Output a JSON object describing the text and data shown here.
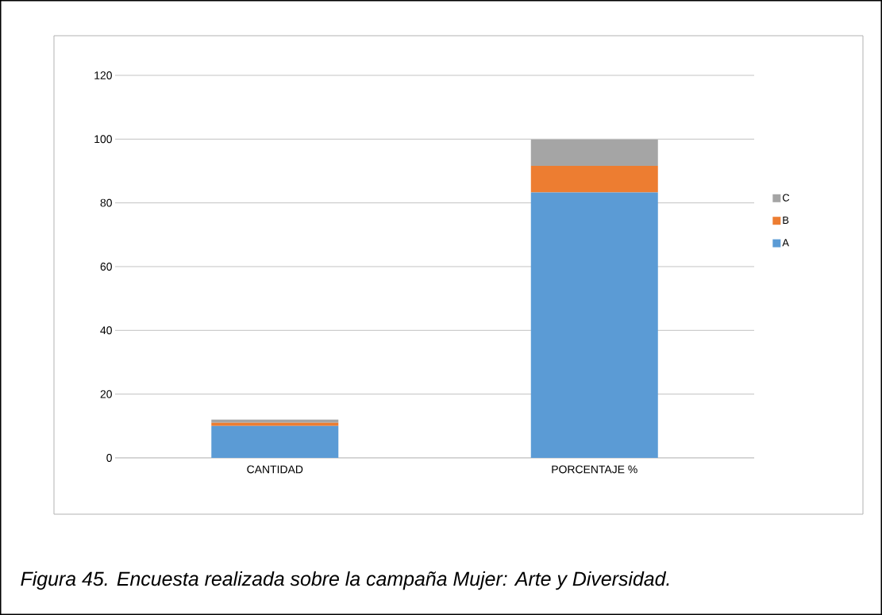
{
  "chart_data": {
    "type": "bar",
    "stacked": true,
    "categories": [
      "CANTIDAD",
      "PORCENTAJE %"
    ],
    "series": [
      {
        "name": "A",
        "color": "#5b9bd5",
        "values": [
          10,
          83.3
        ]
      },
      {
        "name": "B",
        "color": "#ed7d31",
        "values": [
          1,
          8.3
        ]
      },
      {
        "name": "C",
        "color": "#a5a5a5",
        "values": [
          1,
          8.3
        ]
      }
    ],
    "ylim": [
      0,
      120
    ],
    "yticks": [
      0,
      20,
      40,
      60,
      80,
      100,
      120
    ],
    "grid": "y",
    "legend": "right",
    "annotations": [
      "*Figura 45. Encuesta realizada sobre la campaña Mujer: Arte y Diversidad.*"
    ]
  }
}
